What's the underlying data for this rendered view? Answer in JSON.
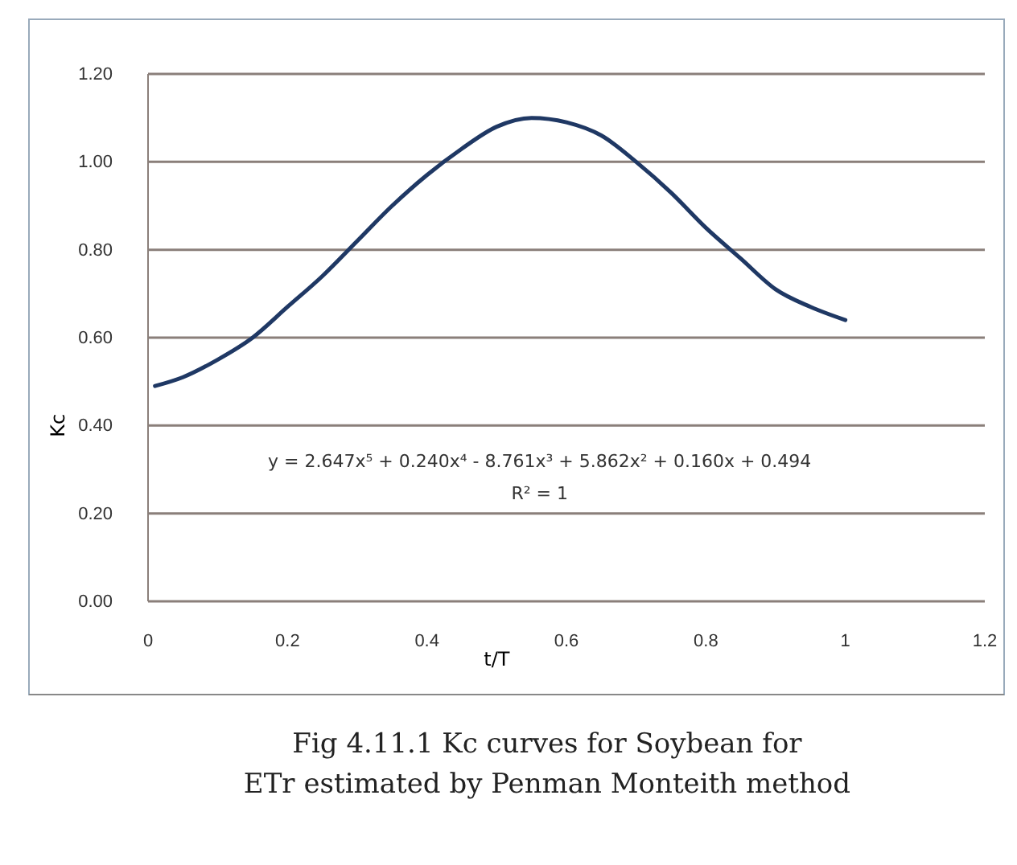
{
  "chart_data": {
    "type": "line",
    "title": "Fig 4.11.1  Kc curves for Soybean for\nETr estimated by Penman Monteith method",
    "xlabel": "t/T",
    "ylabel": "Kc",
    "annotations": [
      "y = 2.647x⁵ + 0.240x⁴ - 8.761x³ + 5.862x² + 0.160x + 0.494",
      "R² = 1"
    ],
    "series": [
      {
        "color": "#1f3864",
        "x": [
          0.01,
          0.05,
          0.1,
          0.15,
          0.2,
          0.25,
          0.3,
          0.35,
          0.4,
          0.45,
          0.5,
          0.55,
          0.6,
          0.65,
          0.7,
          0.75,
          0.8,
          0.85,
          0.9,
          0.95,
          1.0
        ],
        "values": [
          0.49,
          0.51,
          0.55,
          0.6,
          0.67,
          0.74,
          0.82,
          0.9,
          0.97,
          1.03,
          1.08,
          1.1,
          1.09,
          1.06,
          1.0,
          0.93,
          0.85,
          0.78,
          0.71,
          0.67,
          0.64
        ]
      }
    ],
    "xlim": [
      0,
      1.2
    ],
    "xticks": [
      0,
      0.2,
      0.4,
      0.6,
      0.8,
      1,
      1.2
    ],
    "ylim": [
      0,
      1.2
    ],
    "yticks": [
      {
        "value": 0,
        "label": "0.00"
      },
      {
        "value": 0.2,
        "label": "0.20"
      },
      {
        "value": 0.4,
        "label": "0.40"
      },
      {
        "value": 0.6,
        "label": "0.60"
      },
      {
        "value": 0.8,
        "label": "0.80"
      },
      {
        "value": 1,
        "label": "1.00"
      },
      {
        "value": 1.2,
        "label": "1.20"
      }
    ],
    "grid": "y",
    "marker": "none",
    "line_style": "solid"
  }
}
